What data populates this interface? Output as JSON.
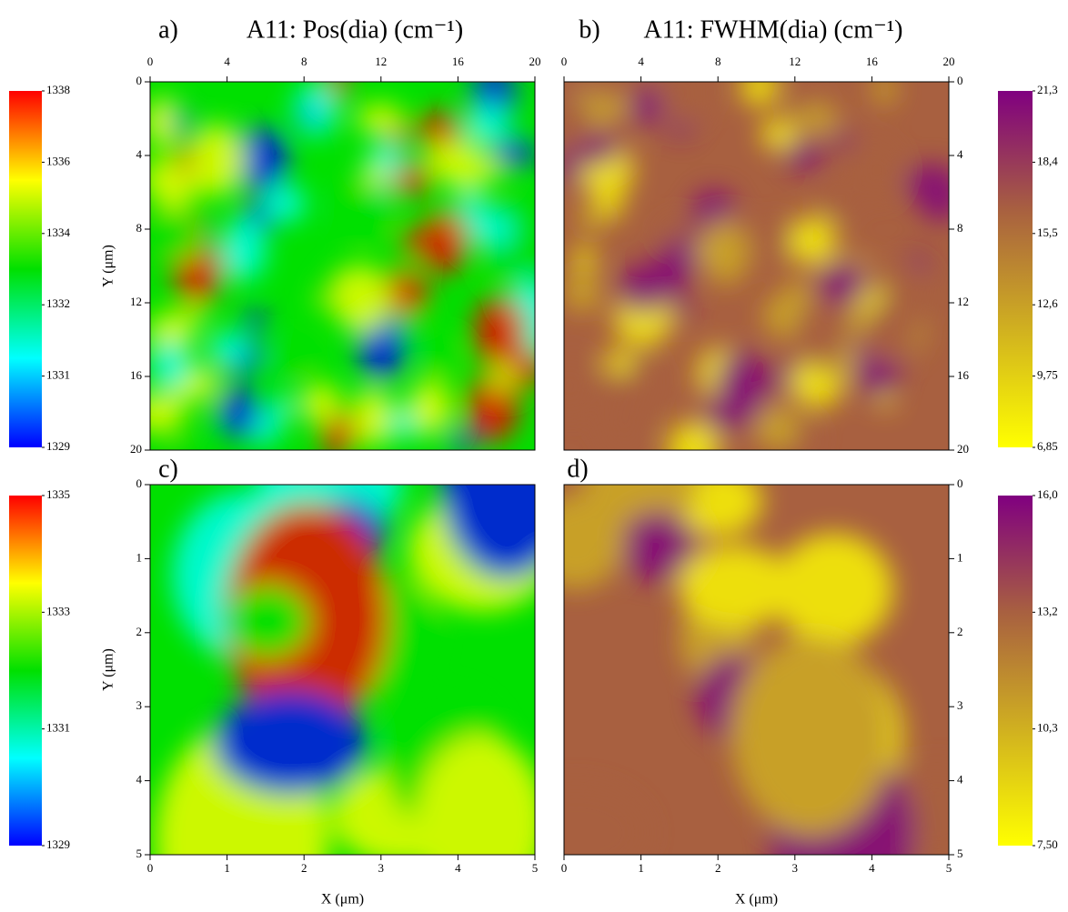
{
  "chart_data": [
    {
      "type": "heatmap",
      "label": "a)",
      "title": "A11: Pos(dia) (cm⁻¹)",
      "ylabel": "Y (μm)",
      "xlim": [
        0,
        20
      ],
      "ylim": [
        0,
        20
      ],
      "xticks": [
        0,
        4,
        8,
        12,
        16,
        20
      ],
      "yticks": [
        0,
        4,
        8,
        12,
        16,
        20
      ],
      "x_axis_position": "top",
      "y_axis_position": "left",
      "colorbar": {
        "position": "left",
        "colors": [
          "#0000ff",
          "#00ffff",
          "#00e000",
          "#ffff00",
          "#ff0000"
        ],
        "ticks": [
          1329,
          1331,
          1332,
          1334,
          1336,
          1338
        ]
      }
    },
    {
      "type": "heatmap",
      "label": "b)",
      "title": "A11: FWHM(dia) (cm⁻¹)",
      "xlim": [
        0,
        20
      ],
      "ylim": [
        0,
        20
      ],
      "xticks": [
        0,
        4,
        8,
        12,
        16,
        20
      ],
      "yticks": [
        0,
        4,
        8,
        12,
        16,
        20
      ],
      "x_axis_position": "top",
      "y_axis_position": "right",
      "colorbar": {
        "position": "right",
        "colors": [
          "#ffff00",
          "#d0b020",
          "#a86040",
          "#800080"
        ],
        "ticks": [
          {
            "value": 6.85,
            "label": "6,85"
          },
          {
            "value": 9.75,
            "label": "9,75"
          },
          {
            "value": 12.6,
            "label": "12,6"
          },
          {
            "value": 15.5,
            "label": "15,5"
          },
          {
            "value": 18.4,
            "label": "18,4"
          },
          {
            "value": 21.3,
            "label": "21,3"
          }
        ]
      }
    },
    {
      "type": "heatmap",
      "label": "c)",
      "xlabel": "X (μm)",
      "ylabel": "Y (μm)",
      "xlim": [
        0,
        5
      ],
      "ylim": [
        0,
        5
      ],
      "xticks": [
        0,
        1,
        2,
        3,
        4,
        5
      ],
      "yticks": [
        0,
        1,
        2,
        3,
        4,
        5
      ],
      "x_axis_position": "bottom",
      "y_axis_position": "left",
      "colorbar": {
        "position": "left",
        "colors": [
          "#0000ff",
          "#00ffff",
          "#00e000",
          "#ffff00",
          "#ff0000"
        ],
        "ticks": [
          1329,
          1331,
          1333,
          1335
        ]
      }
    },
    {
      "type": "heatmap",
      "label": "d)",
      "xlabel": "X (μm)",
      "xlim": [
        0,
        5
      ],
      "ylim": [
        0,
        5
      ],
      "xticks": [
        0,
        1,
        2,
        3,
        4,
        5
      ],
      "yticks": [
        0,
        1,
        2,
        3,
        4,
        5
      ],
      "x_axis_position": "bottom",
      "y_axis_position": "right",
      "colorbar": {
        "position": "right",
        "colors": [
          "#ffff00",
          "#d0b020",
          "#a86040",
          "#800080"
        ],
        "ticks": [
          {
            "value": 7.5,
            "label": "7,50"
          },
          {
            "value": 10.3,
            "label": "10,3"
          },
          {
            "value": 13.2,
            "label": "13,2"
          },
          {
            "value": 16.0,
            "label": "16,0"
          }
        ]
      }
    }
  ]
}
